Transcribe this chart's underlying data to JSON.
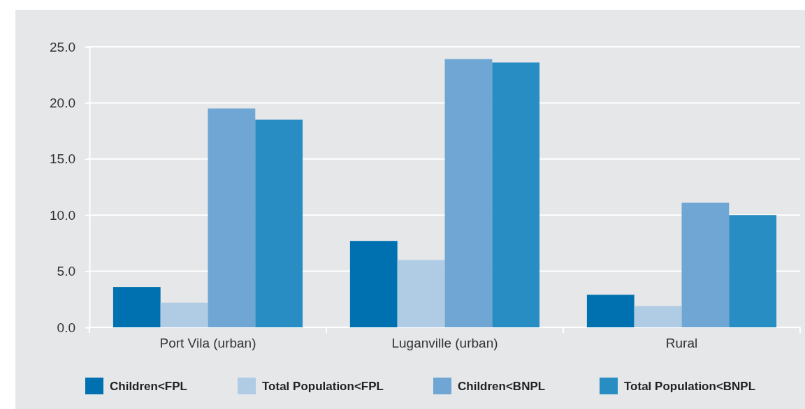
{
  "chart_data": {
    "type": "bar",
    "categories": [
      "Port Vila (urban)",
      "Luganville (urban)",
      "Rural"
    ],
    "series": [
      {
        "name": "Children<FPL",
        "color": "#0071b0",
        "values": [
          3.6,
          7.7,
          2.9
        ]
      },
      {
        "name": "Total Population<FPL",
        "color": "#b0cce5",
        "values": [
          2.2,
          6.0,
          1.9
        ]
      },
      {
        "name": "Children<BNPL",
        "color": "#6fa6d3",
        "values": [
          19.5,
          23.9,
          11.1
        ]
      },
      {
        "name": "Total Population<BNPL",
        "color": "#278dc3",
        "values": [
          18.5,
          23.6,
          10.0
        ]
      }
    ],
    "ylim": [
      0,
      25
    ],
    "yticks": [
      {
        "value": 0,
        "label": "0.0"
      },
      {
        "value": 5,
        "label": "5.0"
      },
      {
        "value": 10,
        "label": "10.0"
      },
      {
        "value": 15,
        "label": "15.0"
      },
      {
        "value": 20,
        "label": "20.0"
      },
      {
        "value": 25,
        "label": "25.0"
      }
    ],
    "grid": "y",
    "legend": "bottom"
  }
}
